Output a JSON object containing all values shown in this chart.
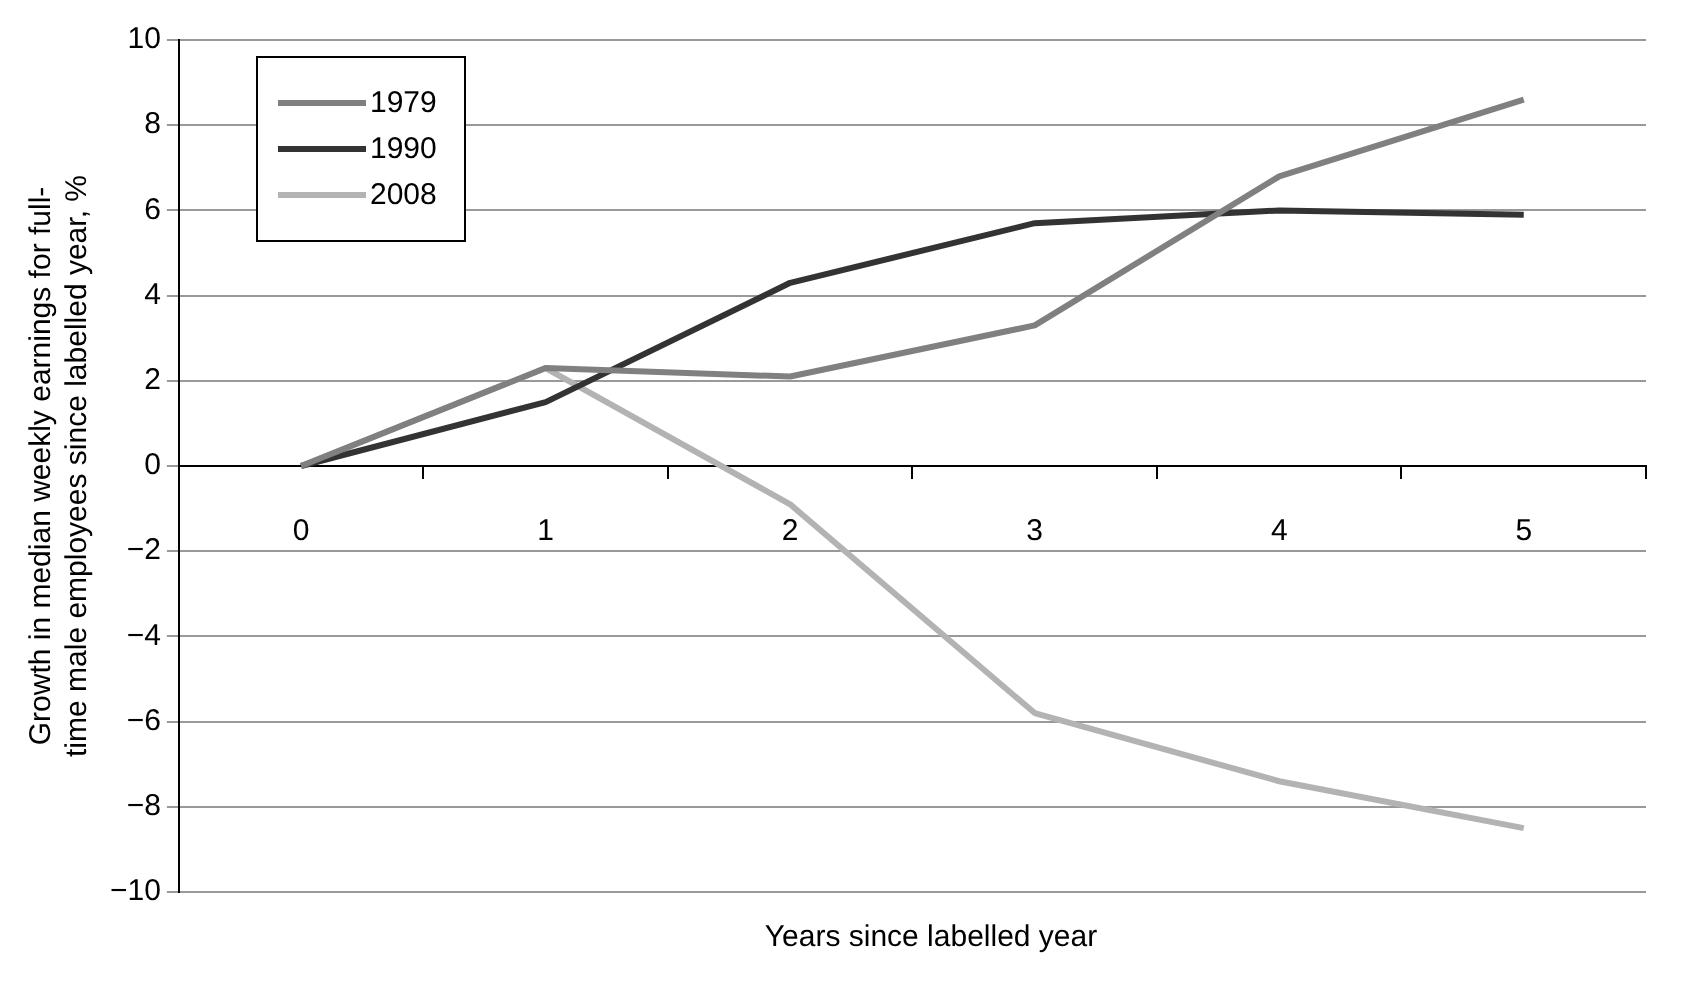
{
  "chart_data": {
    "type": "line",
    "xlabel": "Years since labelled year",
    "ylabel": "Growth in median weekly earnings for full-time male employees since labelled year, %",
    "categories": [
      "0",
      "1",
      "2",
      "3",
      "4",
      "5"
    ],
    "series": [
      {
        "name": "1979",
        "color": "#808080",
        "values": [
          0,
          2.3,
          2.1,
          3.3,
          6.8,
          8.6
        ]
      },
      {
        "name": "1990",
        "color": "#333333",
        "values": [
          0,
          1.5,
          4.3,
          5.7,
          6.0,
          5.9
        ]
      },
      {
        "name": "2008",
        "color": "#b3b3b3",
        "values": [
          0,
          2.3,
          -0.9,
          -5.8,
          -7.4,
          -8.5
        ]
      }
    ],
    "ylim": [
      -10,
      10
    ],
    "yticks": [
      {
        "value": -10,
        "label": "−10"
      },
      {
        "value": -8,
        "label": "−8"
      },
      {
        "value": -6,
        "label": "−6"
      },
      {
        "value": -4,
        "label": "−4"
      },
      {
        "value": -2,
        "label": "−2"
      },
      0,
      2,
      4,
      6,
      8,
      10
    ],
    "grid": "y",
    "legend": "top left",
    "marker": "none",
    "line_style": "solid"
  }
}
